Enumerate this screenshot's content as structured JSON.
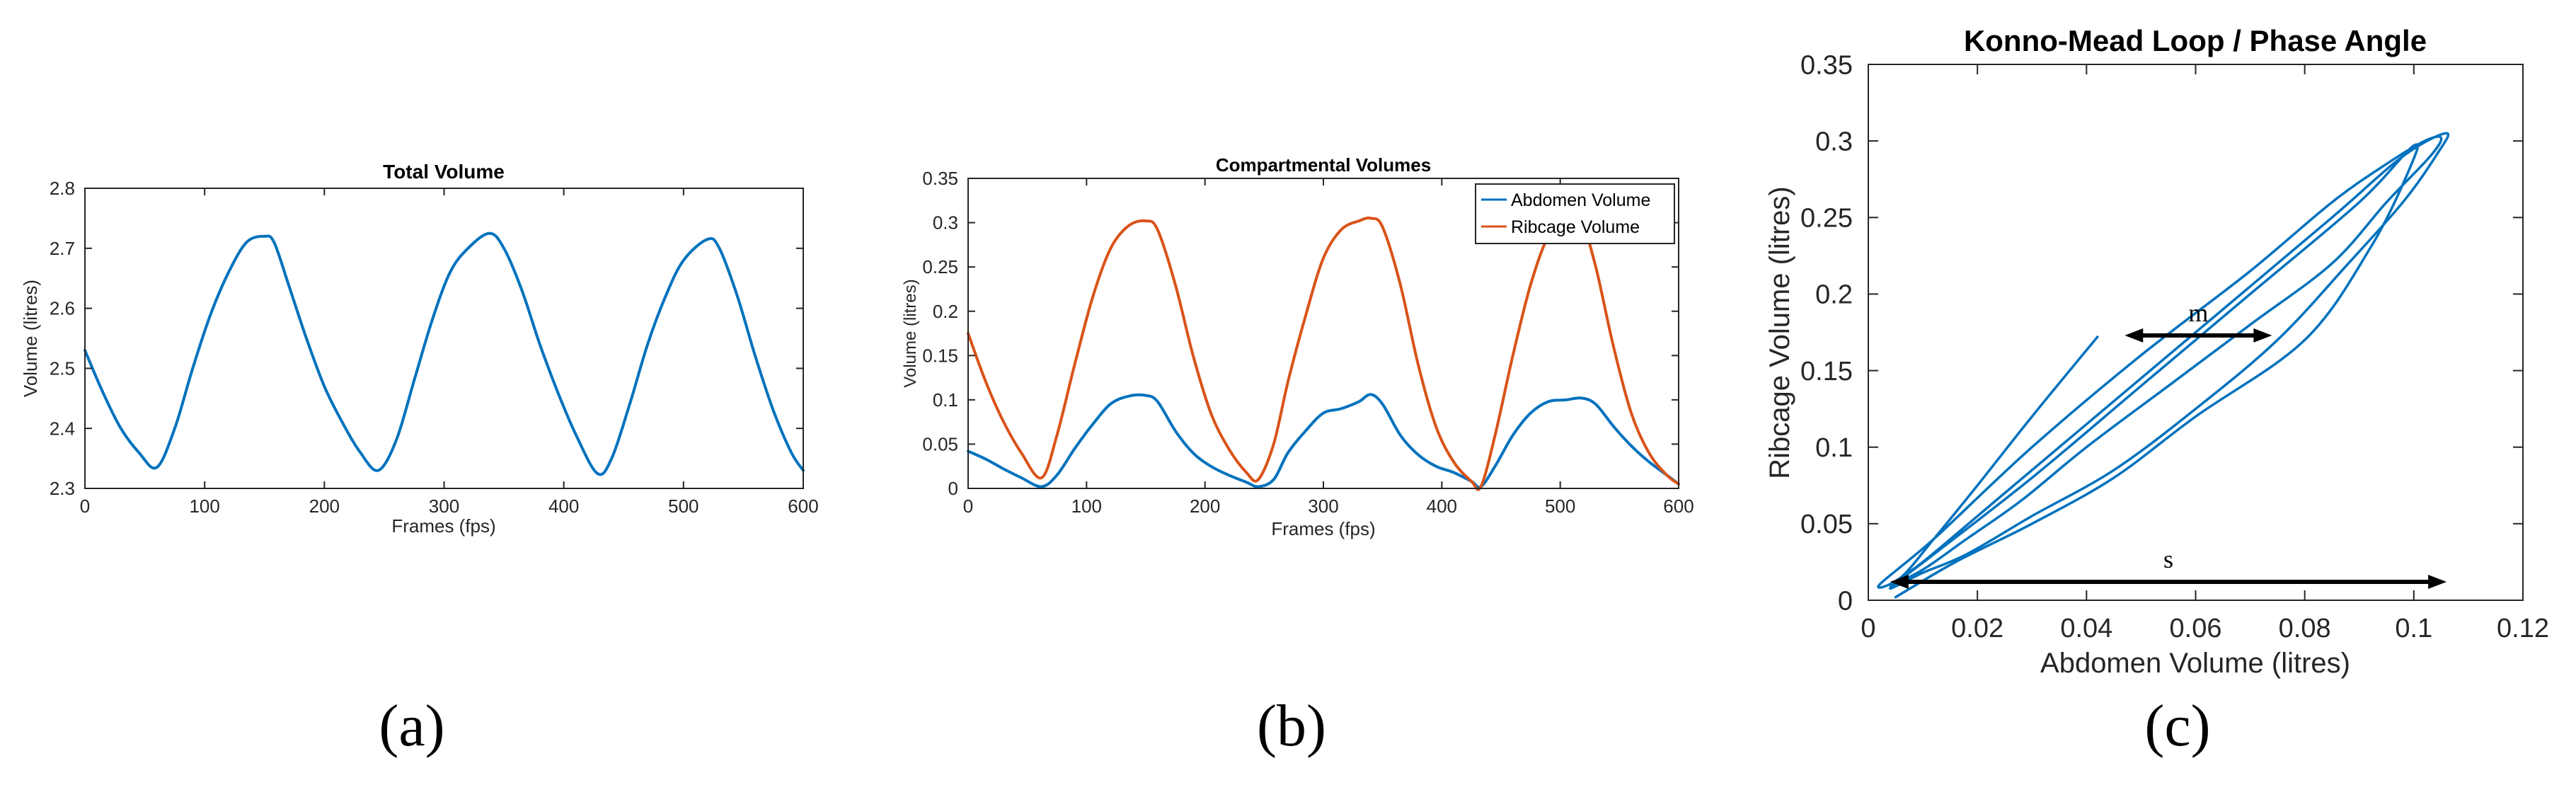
{
  "chart_data": [
    {
      "id": "a",
      "type": "line",
      "panel_label": "(a)",
      "title": "Total Volume",
      "xlabel": "Frames (fps)",
      "ylabel": "Volume (litres)",
      "xlim": [
        0,
        600
      ],
      "ylim": [
        2.3,
        2.8
      ],
      "xticks": [
        0,
        100,
        200,
        300,
        400,
        500,
        600
      ],
      "xtick_labels": [
        "0",
        "100",
        "200",
        "300",
        "400",
        "500",
        "600"
      ],
      "yticks": [
        2.3,
        2.4,
        2.5,
        2.6,
        2.7,
        2.8
      ],
      "ytick_labels": [
        "2.3",
        "2.4",
        "2.5",
        "2.6",
        "2.7",
        "2.8"
      ],
      "grid": false,
      "series": [
        {
          "name": "Total Volume",
          "color": "#0072BD",
          "x": [
            0,
            15,
            30,
            45,
            60,
            75,
            90,
            105,
            120,
            135,
            150,
            158,
            170,
            185,
            200,
            215,
            230,
            245,
            260,
            275,
            290,
            305,
            320,
            338,
            350,
            365,
            380,
            395,
            410,
            428,
            440,
            455,
            470,
            485,
            500,
            520,
            530,
            545,
            560,
            575,
            590,
            600
          ],
          "y": [
            2.53,
            2.46,
            2.4,
            2.36,
            2.335,
            2.4,
            2.5,
            2.59,
            2.66,
            2.71,
            2.72,
            2.71,
            2.64,
            2.55,
            2.47,
            2.41,
            2.36,
            2.33,
            2.38,
            2.48,
            2.58,
            2.66,
            2.7,
            2.725,
            2.7,
            2.63,
            2.54,
            2.46,
            2.39,
            2.325,
            2.35,
            2.44,
            2.54,
            2.62,
            2.68,
            2.715,
            2.7,
            2.62,
            2.52,
            2.43,
            2.36,
            2.33
          ]
        }
      ]
    },
    {
      "id": "b",
      "type": "line",
      "panel_label": "(b)",
      "title": "Compartmental Volumes",
      "xlabel": "Frames (fps)",
      "ylabel": "Volume (litres)",
      "xlim": [
        0,
        600
      ],
      "ylim": [
        0,
        0.35
      ],
      "xticks": [
        0,
        100,
        200,
        300,
        400,
        500,
        600
      ],
      "xtick_labels": [
        "0",
        "100",
        "200",
        "300",
        "400",
        "500",
        "600"
      ],
      "yticks": [
        0,
        0.05,
        0.1,
        0.15,
        0.2,
        0.25,
        0.3,
        0.35
      ],
      "ytick_labels": [
        "0",
        "0.05",
        "0.1",
        "0.15",
        "0.2",
        "0.25",
        "0.3",
        "0.35"
      ],
      "grid": false,
      "legend_position": "top-right",
      "series": [
        {
          "name": "Abdomen Volume",
          "color": "#0072BD",
          "x": [
            0,
            15,
            30,
            45,
            62,
            75,
            90,
            105,
            120,
            135,
            150,
            160,
            175,
            190,
            205,
            220,
            235,
            245,
            258,
            270,
            285,
            300,
            315,
            330,
            340,
            350,
            365,
            380,
            395,
            410,
            425,
            433,
            445,
            460,
            475,
            490,
            505,
            518,
            530,
            545,
            560,
            575,
            590,
            600
          ],
          "y": [
            0.042,
            0.033,
            0.022,
            0.012,
            0.002,
            0.015,
            0.045,
            0.072,
            0.095,
            0.104,
            0.105,
            0.098,
            0.065,
            0.04,
            0.025,
            0.015,
            0.007,
            0.002,
            0.01,
            0.04,
            0.065,
            0.085,
            0.09,
            0.098,
            0.106,
            0.095,
            0.06,
            0.038,
            0.025,
            0.018,
            0.008,
            0.002,
            0.025,
            0.06,
            0.085,
            0.098,
            0.1,
            0.102,
            0.095,
            0.07,
            0.048,
            0.03,
            0.015,
            0.005
          ]
        },
        {
          "name": "Ribcage Volume",
          "color": "#D95319",
          "x": [
            0,
            15,
            30,
            45,
            62,
            75,
            90,
            105,
            120,
            135,
            150,
            160,
            175,
            190,
            205,
            220,
            235,
            245,
            258,
            270,
            285,
            300,
            315,
            330,
            340,
            350,
            365,
            380,
            395,
            410,
            425,
            433,
            445,
            460,
            475,
            490,
            505,
            518,
            530,
            545,
            560,
            575,
            590,
            600
          ],
          "y": [
            0.175,
            0.12,
            0.075,
            0.04,
            0.012,
            0.06,
            0.14,
            0.215,
            0.27,
            0.296,
            0.302,
            0.292,
            0.23,
            0.15,
            0.085,
            0.045,
            0.018,
            0.01,
            0.05,
            0.12,
            0.195,
            0.26,
            0.292,
            0.302,
            0.305,
            0.295,
            0.23,
            0.14,
            0.07,
            0.03,
            0.008,
            0.002,
            0.06,
            0.15,
            0.23,
            0.285,
            0.305,
            0.3,
            0.25,
            0.16,
            0.085,
            0.04,
            0.015,
            0.005
          ]
        }
      ]
    },
    {
      "id": "c",
      "type": "line",
      "panel_label": "(c)",
      "title": "Konno-Mead Loop / Phase Angle",
      "xlabel": "Abdomen Volume (litres)",
      "ylabel": "Ribcage Volume (litres)",
      "xlim": [
        0,
        0.12
      ],
      "ylim": [
        0,
        0.35
      ],
      "xticks": [
        0,
        0.02,
        0.04,
        0.06,
        0.08,
        0.1,
        0.12
      ],
      "xtick_labels": [
        "0",
        "0.02",
        "0.04",
        "0.06",
        "0.08",
        "0.1",
        "0.12"
      ],
      "yticks": [
        0,
        0.05,
        0.1,
        0.15,
        0.2,
        0.25,
        0.3,
        0.35
      ],
      "ytick_labels": [
        "0",
        "0.05",
        "0.1",
        "0.15",
        "0.2",
        "0.25",
        "0.3",
        "0.35"
      ],
      "grid": false,
      "series": [
        {
          "name": "Konno-Mead loop",
          "color": "#0072BD",
          "x": [
            0.042,
            0.03,
            0.02,
            0.012,
            0.006,
            0.002,
            0.012,
            0.03,
            0.05,
            0.07,
            0.085,
            0.095,
            0.102,
            0.105,
            0.103,
            0.095,
            0.085,
            0.07,
            0.055,
            0.04,
            0.028,
            0.018,
            0.01,
            0.004,
            0.01,
            0.025,
            0.045,
            0.065,
            0.085,
            0.098,
            0.106,
            0.104,
            0.098,
            0.088,
            0.075,
            0.06,
            0.045,
            0.03,
            0.018,
            0.01,
            0.004,
            0.012,
            0.03,
            0.05,
            0.07,
            0.09,
            0.1,
            0.099,
            0.092,
            0.08,
            0.06,
            0.045,
            0.03,
            0.016,
            0.005
          ],
          "y": [
            0.172,
            0.12,
            0.075,
            0.04,
            0.015,
            0.01,
            0.04,
            0.1,
            0.16,
            0.215,
            0.26,
            0.285,
            0.3,
            0.302,
            0.29,
            0.26,
            0.22,
            0.18,
            0.14,
            0.1,
            0.065,
            0.04,
            0.02,
            0.01,
            0.025,
            0.07,
            0.13,
            0.19,
            0.25,
            0.29,
            0.305,
            0.29,
            0.26,
            0.22,
            0.17,
            0.125,
            0.085,
            0.055,
            0.03,
            0.018,
            0.008,
            0.03,
            0.08,
            0.14,
            0.2,
            0.26,
            0.297,
            0.28,
            0.23,
            0.17,
            0.12,
            0.08,
            0.05,
            0.025,
            0.002
          ]
        }
      ],
      "annotations": [
        {
          "label": "m",
          "x1": 0.047,
          "x2": 0.074,
          "y": 0.173
        },
        {
          "label": "s",
          "x1": 0.004,
          "x2": 0.106,
          "y": 0.012
        }
      ]
    }
  ]
}
